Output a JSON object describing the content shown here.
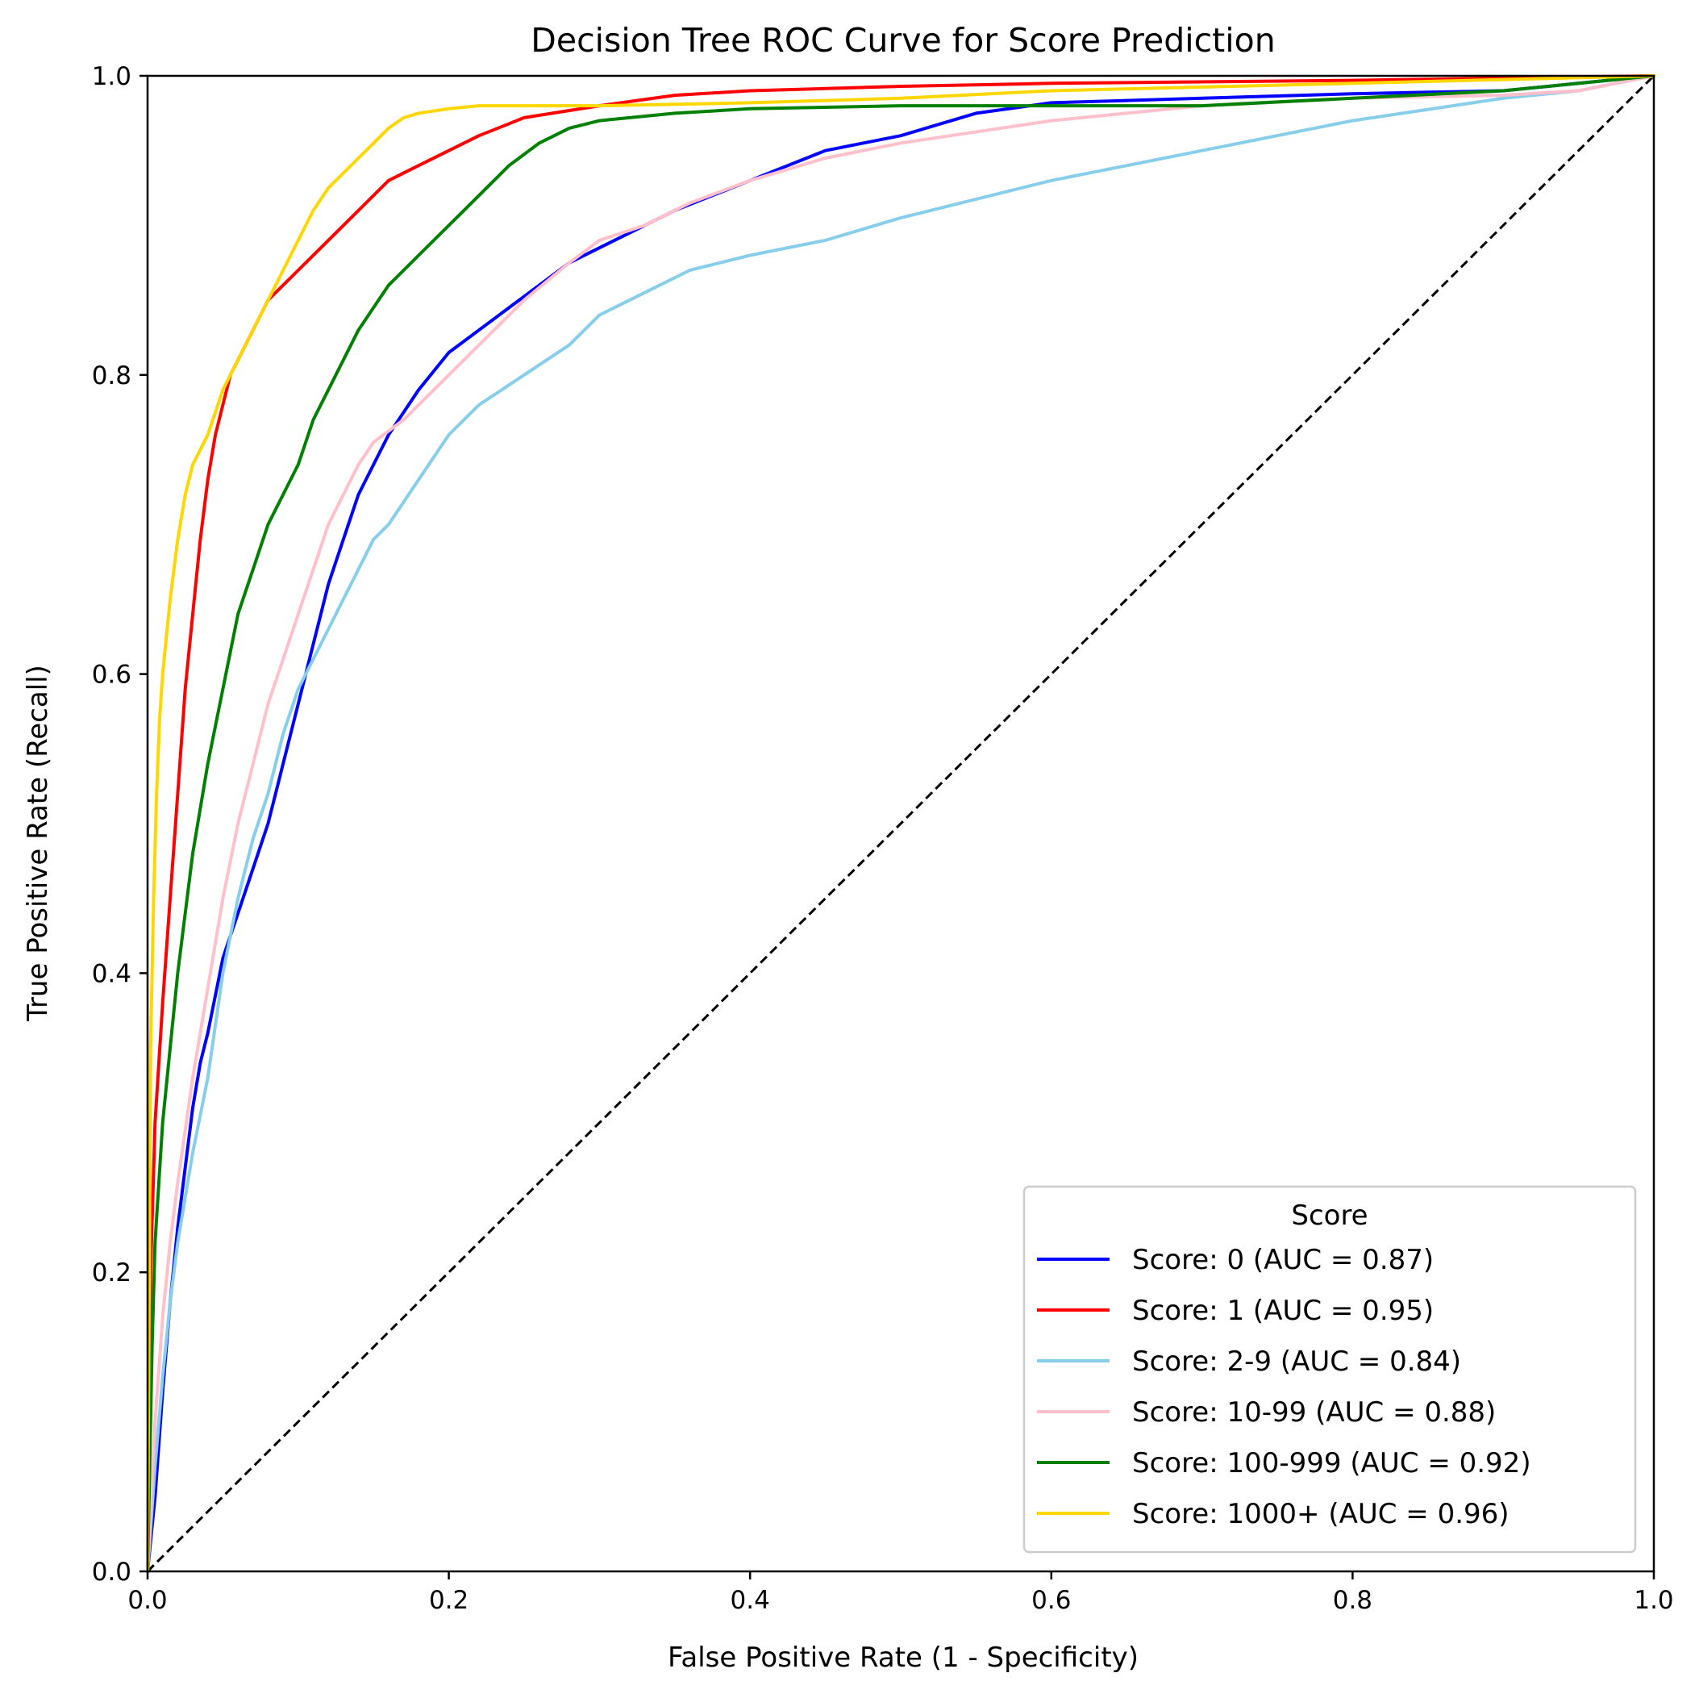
{
  "chart_data": {
    "type": "line",
    "title": "Decision Tree ROC Curve for Score Prediction",
    "xlabel": "False Positive Rate (1 - Specificity)",
    "ylabel": "True Positive Rate (Recall)",
    "xlim": [
      0.0,
      1.0
    ],
    "ylim": [
      0.0,
      1.0
    ],
    "xticks": [
      0.0,
      0.2,
      0.4,
      0.6,
      0.8,
      1.0
    ],
    "yticks": [
      0.0,
      0.2,
      0.4,
      0.6,
      0.8,
      1.0
    ],
    "xtick_labels": [
      "0.0",
      "0.2",
      "0.4",
      "0.6",
      "0.8",
      "1.0"
    ],
    "ytick_labels": [
      "0.0",
      "0.2",
      "0.4",
      "0.6",
      "0.8",
      "1.0"
    ],
    "grid": false,
    "legend": {
      "title": "Score",
      "position": "lower-right"
    },
    "diagonal": {
      "x": [
        0,
        1
      ],
      "y": [
        0,
        1
      ],
      "color": "#000000",
      "style": "dashed"
    },
    "series": [
      {
        "name": "Score: 0 (AUC = 0.87)",
        "color": "#0000ff",
        "x": [
          0,
          0.005,
          0.01,
          0.015,
          0.02,
          0.025,
          0.03,
          0.035,
          0.04,
          0.05,
          0.06,
          0.07,
          0.08,
          0.09,
          0.1,
          0.11,
          0.12,
          0.13,
          0.14,
          0.15,
          0.16,
          0.18,
          0.2,
          0.22,
          0.24,
          0.26,
          0.28,
          0.3,
          0.35,
          0.4,
          0.45,
          0.5,
          0.55,
          0.6,
          0.7,
          0.8,
          0.9,
          0.95,
          1.0
        ],
        "y": [
          0,
          0.05,
          0.12,
          0.18,
          0.23,
          0.27,
          0.31,
          0.34,
          0.36,
          0.41,
          0.44,
          0.47,
          0.5,
          0.54,
          0.58,
          0.62,
          0.66,
          0.69,
          0.72,
          0.74,
          0.76,
          0.79,
          0.815,
          0.83,
          0.845,
          0.86,
          0.875,
          0.885,
          0.91,
          0.93,
          0.95,
          0.96,
          0.975,
          0.982,
          0.985,
          0.988,
          0.99,
          0.995,
          1.0
        ]
      },
      {
        "name": "Score: 1 (AUC = 0.95)",
        "color": "#ff0000",
        "x": [
          0,
          0.002,
          0.005,
          0.01,
          0.015,
          0.02,
          0.025,
          0.03,
          0.035,
          0.04,
          0.045,
          0.05,
          0.055,
          0.06,
          0.07,
          0.08,
          0.09,
          0.1,
          0.12,
          0.14,
          0.16,
          0.18,
          0.2,
          0.22,
          0.25,
          0.3,
          0.35,
          0.4,
          0.5,
          0.6,
          0.8,
          1.0
        ],
        "y": [
          0,
          0.2,
          0.3,
          0.38,
          0.45,
          0.52,
          0.59,
          0.64,
          0.69,
          0.73,
          0.76,
          0.78,
          0.8,
          0.81,
          0.83,
          0.85,
          0.86,
          0.87,
          0.89,
          0.91,
          0.93,
          0.94,
          0.95,
          0.96,
          0.972,
          0.98,
          0.987,
          0.99,
          0.993,
          0.995,
          0.997,
          1.0
        ]
      },
      {
        "name": "Score: 2-9 (AUC = 0.84)",
        "color": "#87ceeb",
        "x": [
          0,
          0.005,
          0.01,
          0.015,
          0.02,
          0.03,
          0.04,
          0.05,
          0.06,
          0.07,
          0.08,
          0.09,
          0.1,
          0.11,
          0.12,
          0.13,
          0.14,
          0.15,
          0.16,
          0.18,
          0.2,
          0.22,
          0.25,
          0.28,
          0.3,
          0.33,
          0.36,
          0.4,
          0.45,
          0.5,
          0.6,
          0.7,
          0.8,
          0.9,
          0.95,
          1.0
        ],
        "y": [
          0,
          0.07,
          0.13,
          0.18,
          0.22,
          0.28,
          0.33,
          0.4,
          0.45,
          0.49,
          0.52,
          0.56,
          0.59,
          0.61,
          0.63,
          0.65,
          0.67,
          0.69,
          0.7,
          0.73,
          0.76,
          0.78,
          0.8,
          0.82,
          0.84,
          0.855,
          0.87,
          0.88,
          0.89,
          0.905,
          0.93,
          0.95,
          0.97,
          0.985,
          0.99,
          1.0
        ]
      },
      {
        "name": "Score: 10-99 (AUC = 0.88)",
        "color": "#ffc0cb",
        "x": [
          0,
          0.005,
          0.01,
          0.015,
          0.02,
          0.03,
          0.04,
          0.05,
          0.06,
          0.07,
          0.08,
          0.09,
          0.1,
          0.11,
          0.12,
          0.13,
          0.14,
          0.15,
          0.17,
          0.2,
          0.22,
          0.25,
          0.28,
          0.3,
          0.33,
          0.36,
          0.4,
          0.45,
          0.5,
          0.6,
          0.7,
          0.8,
          0.9,
          0.95,
          1.0
        ],
        "y": [
          0,
          0.1,
          0.17,
          0.22,
          0.26,
          0.33,
          0.39,
          0.45,
          0.5,
          0.54,
          0.58,
          0.61,
          0.64,
          0.67,
          0.7,
          0.72,
          0.74,
          0.755,
          0.77,
          0.8,
          0.82,
          0.85,
          0.875,
          0.89,
          0.9,
          0.915,
          0.93,
          0.945,
          0.955,
          0.97,
          0.98,
          0.985,
          0.987,
          0.99,
          1.0
        ]
      },
      {
        "name": "Score: 100-999 (AUC = 0.92)",
        "color": "#008000",
        "x": [
          0,
          0.003,
          0.005,
          0.01,
          0.015,
          0.02,
          0.025,
          0.03,
          0.04,
          0.05,
          0.06,
          0.07,
          0.08,
          0.09,
          0.1,
          0.11,
          0.12,
          0.13,
          0.14,
          0.15,
          0.16,
          0.18,
          0.2,
          0.21,
          0.22,
          0.24,
          0.26,
          0.28,
          0.3,
          0.35,
          0.4,
          0.5,
          0.6,
          0.7,
          0.8,
          0.9,
          1.0
        ],
        "y": [
          0,
          0.15,
          0.22,
          0.3,
          0.35,
          0.4,
          0.44,
          0.48,
          0.54,
          0.59,
          0.64,
          0.67,
          0.7,
          0.72,
          0.74,
          0.77,
          0.79,
          0.81,
          0.83,
          0.845,
          0.86,
          0.88,
          0.9,
          0.91,
          0.92,
          0.94,
          0.955,
          0.965,
          0.97,
          0.975,
          0.978,
          0.98,
          0.98,
          0.98,
          0.985,
          0.99,
          1.0
        ]
      },
      {
        "name": "Score: 1000+ (AUC = 0.96)",
        "color": "#ffd700",
        "x": [
          0,
          0.002,
          0.004,
          0.006,
          0.008,
          0.01,
          0.015,
          0.02,
          0.025,
          0.03,
          0.04,
          0.05,
          0.06,
          0.07,
          0.08,
          0.09,
          0.1,
          0.11,
          0.12,
          0.13,
          0.14,
          0.15,
          0.16,
          0.17,
          0.18,
          0.2,
          0.22,
          0.25,
          0.3,
          0.4,
          0.5,
          0.6,
          0.8,
          1.0
        ],
        "y": [
          0,
          0.35,
          0.45,
          0.52,
          0.57,
          0.6,
          0.65,
          0.69,
          0.72,
          0.74,
          0.76,
          0.79,
          0.81,
          0.83,
          0.85,
          0.87,
          0.89,
          0.91,
          0.925,
          0.935,
          0.945,
          0.955,
          0.965,
          0.972,
          0.975,
          0.978,
          0.98,
          0.98,
          0.98,
          0.982,
          0.985,
          0.99,
          0.995,
          1.0
        ]
      }
    ]
  }
}
